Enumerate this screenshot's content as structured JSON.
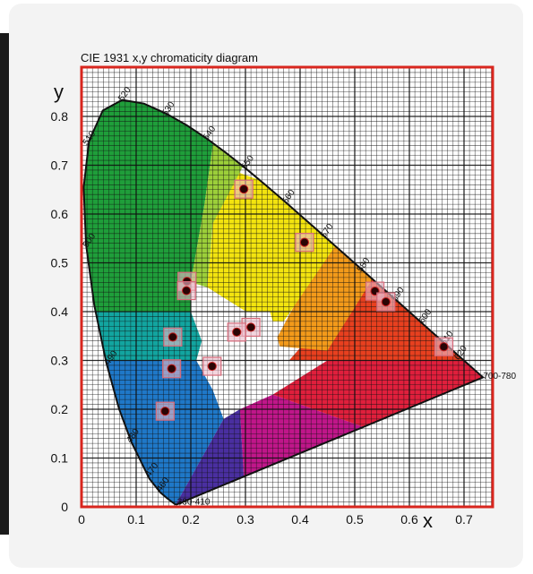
{
  "chart_data": {
    "type": "scatter",
    "title": "CIE 1931 x,y chromaticity diagram",
    "xlabel": "x",
    "ylabel": "y",
    "xlim": [
      0,
      0.8
    ],
    "ylim": [
      0,
      0.9
    ],
    "x_ticks": [
      "0",
      "0.1",
      "0.2",
      "0.3",
      "0.4",
      "0.5",
      "0.6",
      "0.7"
    ],
    "y_ticks": [
      "0",
      "0.1",
      "0.2",
      "0.3",
      "0.4",
      "0.5",
      "0.6",
      "0.7",
      "0.8"
    ],
    "grid": true,
    "wavelength_labels": [
      {
        "text": "380-410",
        "x": 0.175,
        "y": 0.005
      },
      {
        "text": "460",
        "x": 0.145,
        "y": 0.03
      },
      {
        "text": "470",
        "x": 0.125,
        "y": 0.06
      },
      {
        "text": "480",
        "x": 0.09,
        "y": 0.13
      },
      {
        "text": "490",
        "x": 0.05,
        "y": 0.29
      },
      {
        "text": "500",
        "x": 0.01,
        "y": 0.53
      },
      {
        "text": "510",
        "x": 0.01,
        "y": 0.74
      },
      {
        "text": "520",
        "x": 0.075,
        "y": 0.83
      },
      {
        "text": "530",
        "x": 0.155,
        "y": 0.8
      },
      {
        "text": "540",
        "x": 0.23,
        "y": 0.75
      },
      {
        "text": "550",
        "x": 0.3,
        "y": 0.69
      },
      {
        "text": "560",
        "x": 0.375,
        "y": 0.62
      },
      {
        "text": "570",
        "x": 0.445,
        "y": 0.55
      },
      {
        "text": "580",
        "x": 0.512,
        "y": 0.48
      },
      {
        "text": "590",
        "x": 0.575,
        "y": 0.42
      },
      {
        "text": "600",
        "x": 0.625,
        "y": 0.375
      },
      {
        "text": "610",
        "x": 0.665,
        "y": 0.33
      },
      {
        "text": "620",
        "x": 0.69,
        "y": 0.3
      },
      {
        "text": "700-780",
        "x": 0.735,
        "y": 0.262
      }
    ],
    "series": [
      {
        "points": [
          {
            "x": 0.297,
            "y": 0.651
          },
          {
            "x": 0.408,
            "y": 0.542
          },
          {
            "x": 0.193,
            "y": 0.462
          },
          {
            "x": 0.192,
            "y": 0.443
          },
          {
            "x": 0.537,
            "y": 0.442
          },
          {
            "x": 0.557,
            "y": 0.42
          },
          {
            "x": 0.31,
            "y": 0.368
          },
          {
            "x": 0.284,
            "y": 0.358
          },
          {
            "x": 0.167,
            "y": 0.348
          },
          {
            "x": 0.663,
            "y": 0.328
          },
          {
            "x": 0.165,
            "y": 0.283
          },
          {
            "x": 0.239,
            "y": 0.288
          },
          {
            "x": 0.153,
            "y": 0.196
          }
        ]
      }
    ]
  }
}
